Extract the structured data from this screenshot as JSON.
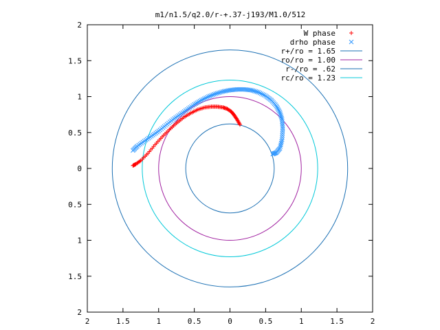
{
  "chart_data": {
    "type": "scatter",
    "title": "m1/n1.5/q2.0/r-+.37-j193/M1.0/512",
    "xlabel": "",
    "ylabel": "",
    "xlim": [
      -2,
      2
    ],
    "ylim": [
      -2,
      2
    ],
    "grid": false,
    "legend_position": "top-right",
    "x_ticks": [
      -2,
      -1.5,
      -1,
      -0.5,
      0,
      0.5,
      1,
      1.5,
      2
    ],
    "x_tick_labels": [
      "2",
      "1.5",
      "1",
      "0.5",
      "0",
      "0.5",
      "1",
      "1.5",
      "2"
    ],
    "y_ticks": [
      2,
      1.5,
      1,
      0.5,
      0,
      -0.5,
      -1,
      -1.5,
      -2
    ],
    "y_tick_labels": [
      "2",
      "1.5",
      "1",
      "0.5",
      "0",
      "0.5",
      "1",
      "1.5",
      "2"
    ],
    "series": [
      {
        "name": "W phase",
        "kind": "points",
        "marker": "+",
        "color": "#ff0000",
        "x": [
          0.14,
          0.1,
          0.06,
          0.02,
          -0.04,
          -0.1,
          -0.18,
          -0.26,
          -0.35,
          -0.45,
          -0.55,
          -0.65,
          -0.75,
          -0.85,
          -0.95,
          -1.05,
          -1.15,
          -1.25,
          -1.32,
          -1.36
        ],
        "y": [
          0.61,
          0.68,
          0.74,
          0.79,
          0.83,
          0.85,
          0.86,
          0.86,
          0.85,
          0.82,
          0.77,
          0.71,
          0.63,
          0.54,
          0.44,
          0.33,
          0.21,
          0.11,
          0.06,
          0.04
        ]
      },
      {
        "name": "drho phase",
        "kind": "points",
        "marker": "x",
        "color": "#3399ff",
        "x": [
          0.6,
          0.65,
          0.7,
          0.73,
          0.74,
          0.73,
          0.7,
          0.65,
          0.58,
          0.5,
          0.4,
          0.3,
          0.2,
          0.1,
          0.0,
          -0.1,
          -0.2,
          -0.3,
          -0.4,
          -0.5,
          -0.6,
          -0.7,
          -0.8,
          -0.9,
          -1.0,
          -1.1,
          -1.2,
          -1.3,
          -1.36
        ],
        "y": [
          0.2,
          0.22,
          0.28,
          0.4,
          0.55,
          0.68,
          0.78,
          0.87,
          0.95,
          1.01,
          1.06,
          1.09,
          1.1,
          1.1,
          1.09,
          1.07,
          1.04,
          1.0,
          0.95,
          0.89,
          0.82,
          0.75,
          0.68,
          0.6,
          0.52,
          0.45,
          0.38,
          0.31,
          0.25
        ]
      },
      {
        "name": "r+/ro = 1.65",
        "kind": "circle",
        "radius": 1.65,
        "color": "#1a6fb3"
      },
      {
        "name": "ro/ro = 1.00",
        "kind": "circle",
        "radius": 1.0,
        "color": "#a020a0"
      },
      {
        "name": "r-/ro = .62",
        "kind": "circle",
        "radius": 0.62,
        "color": "#1a6fb3"
      },
      {
        "name": "rc/ro = 1.23",
        "kind": "circle",
        "radius": 1.23,
        "color": "#00c8d8"
      }
    ]
  }
}
